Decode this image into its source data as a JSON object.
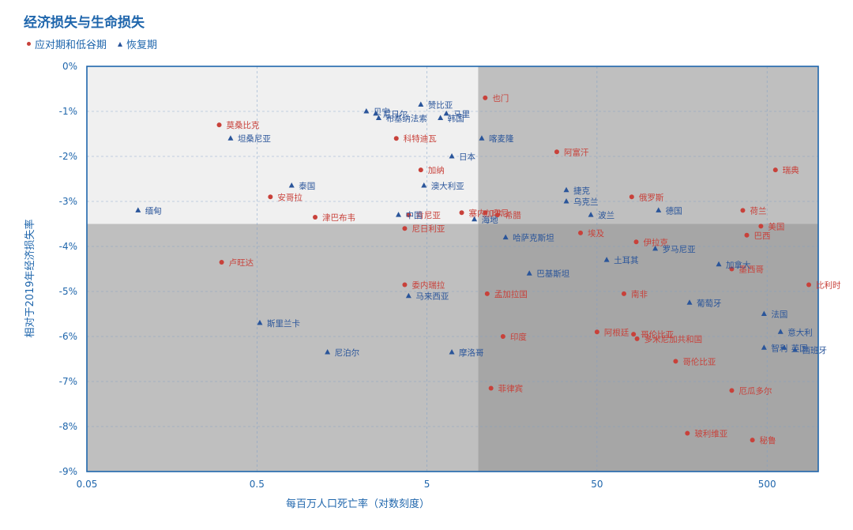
{
  "title": "经济损失与生命损失",
  "legend": {
    "recovery_low": "应对期和低谷期",
    "recovery": "恢复期"
  },
  "colors": {
    "red": "#c8413a",
    "blue": "#2a559a",
    "axis": "#1f66ac"
  },
  "chart_data": {
    "type": "scatter",
    "title": "经济损失与生命损失",
    "xlabel": "每百万人口死亡率（对数刻度）",
    "ylabel": "相对于2019年经济损失率",
    "xscale": "log",
    "xlim": [
      0.05,
      1000
    ],
    "ylim": [
      -9,
      0
    ],
    "x_ticks": [
      0.05,
      0.5,
      5,
      50,
      500
    ],
    "x_tick_labels": [
      "0.05",
      "0.5",
      "5",
      "50",
      "500"
    ],
    "y_ticks": [
      0,
      -1,
      -2,
      -3,
      -4,
      -5,
      -6,
      -7,
      -8,
      -9
    ],
    "y_tick_labels": [
      "0%",
      "-1%",
      "-2%",
      "-3%",
      "-4%",
      "-5%",
      "-6%",
      "-7%",
      "-8%",
      "-9%"
    ],
    "grid": true,
    "quadrant_split": {
      "x": 10,
      "y": -3.5
    },
    "series": [
      {
        "name": "应对期和低谷期",
        "marker": "circle",
        "color": "#c8413a",
        "points": [
          {
            "label": "也门",
            "x": 11,
            "y": -0.7
          },
          {
            "label": "莫桑比克",
            "x": 0.3,
            "y": -1.3
          },
          {
            "label": "科特迪瓦",
            "x": 3.3,
            "y": -1.6
          },
          {
            "label": "阿富汗",
            "x": 29,
            "y": -1.9
          },
          {
            "label": "瑞典",
            "x": 560,
            "y": -2.3
          },
          {
            "label": "加纳",
            "x": 4.6,
            "y": -2.3
          },
          {
            "label": "安哥拉",
            "x": 0.6,
            "y": -2.9
          },
          {
            "label": "俄罗斯",
            "x": 80,
            "y": -2.9
          },
          {
            "label": "塞内加尔",
            "x": 8,
            "y": -3.25
          },
          {
            "label": "印尼",
            "x": 11,
            "y": -3.25
          },
          {
            "label": "荷兰",
            "x": 360,
            "y": -3.2
          },
          {
            "label": "希腊",
            "x": 13,
            "y": -3.3
          },
          {
            "label": "津巴布韦",
            "x": 1.1,
            "y": -3.35
          },
          {
            "label": "肯尼亚",
            "x": 3.9,
            "y": -3.3
          },
          {
            "label": "尼日利亚",
            "x": 3.7,
            "y": -3.6
          },
          {
            "label": "美国",
            "x": 460,
            "y": -3.55
          },
          {
            "label": "埃及",
            "x": 40,
            "y": -3.7
          },
          {
            "label": "巴西",
            "x": 380,
            "y": -3.75
          },
          {
            "label": "伊拉克",
            "x": 85,
            "y": -3.9
          },
          {
            "label": "卢旺达",
            "x": 0.31,
            "y": -4.35
          },
          {
            "label": "比利时",
            "x": 880,
            "y": -4.85
          },
          {
            "label": "墨西哥",
            "x": 310,
            "y": -4.5
          },
          {
            "label": "委内瑞拉",
            "x": 3.7,
            "y": -4.85
          },
          {
            "label": "孟加拉国",
            "x": 11.3,
            "y": -5.05
          },
          {
            "label": "南非",
            "x": 72,
            "y": -5.05
          },
          {
            "label": "阿根廷",
            "x": 50,
            "y": -5.9
          },
          {
            "label": "哥伦比亚",
            "x": 82,
            "y": -5.95
          },
          {
            "label": "印度",
            "x": 14,
            "y": -6
          },
          {
            "label": "多米尼加共和国",
            "x": 86,
            "y": -6.05
          },
          {
            "label": "哥伦比亚",
            "x": 145,
            "y": -6.55
          },
          {
            "label": "菲律宾",
            "x": 11.9,
            "y": -7.15
          },
          {
            "label": "厄瓜多尔",
            "x": 310,
            "y": -7.2
          },
          {
            "label": "玻利维亚",
            "x": 170,
            "y": -8.15
          },
          {
            "label": "秘鲁",
            "x": 410,
            "y": -8.3
          }
        ]
      },
      {
        "name": "恢复期",
        "marker": "triangle",
        "color": "#2a559a",
        "points": [
          {
            "label": "赞比亚",
            "x": 4.6,
            "y": -0.85
          },
          {
            "label": "尼日尔",
            "x": 2.5,
            "y": -1.05
          },
          {
            "label": "马里",
            "x": 6.5,
            "y": -1.05
          },
          {
            "label": "韩国",
            "x": 6,
            "y": -1.15
          },
          {
            "label": "贝宁",
            "x": 2.2,
            "y": -1.0
          },
          {
            "label": "布基纳法索",
            "x": 2.6,
            "y": -1.15
          },
          {
            "label": "坦桑尼亚",
            "x": 0.35,
            "y": -1.6
          },
          {
            "label": "喀麦隆",
            "x": 10.5,
            "y": -1.6
          },
          {
            "label": "日本",
            "x": 7,
            "y": -2.0
          },
          {
            "label": "泰国",
            "x": 0.8,
            "y": -2.65
          },
          {
            "label": "澳大利亚",
            "x": 4.8,
            "y": -2.65
          },
          {
            "label": "捷克",
            "x": 33,
            "y": -2.75
          },
          {
            "label": "乌克兰",
            "x": 33,
            "y": -3.0
          },
          {
            "label": "德国",
            "x": 115,
            "y": -3.2
          },
          {
            "label": "缅甸",
            "x": 0.1,
            "y": -3.2
          },
          {
            "label": "波兰",
            "x": 46,
            "y": -3.3
          },
          {
            "label": "海地",
            "x": 9.5,
            "y": -3.4
          },
          {
            "label": "中国",
            "x": 3.4,
            "y": -3.3
          },
          {
            "label": "哈萨克斯坦",
            "x": 14.5,
            "y": -3.8
          },
          {
            "label": "罗马尼亚",
            "x": 110,
            "y": -4.05
          },
          {
            "label": "土耳其",
            "x": 57,
            "y": -4.3
          },
          {
            "label": "巴基斯坦",
            "x": 20,
            "y": -4.6
          },
          {
            "label": "加拿大",
            "x": 260,
            "y": -4.4
          },
          {
            "label": "马来西亚",
            "x": 3.9,
            "y": -5.1
          },
          {
            "label": "葡萄牙",
            "x": 175,
            "y": -5.25
          },
          {
            "label": "法国",
            "x": 480,
            "y": -5.5
          },
          {
            "label": "斯里兰卡",
            "x": 0.52,
            "y": -5.7
          },
          {
            "label": "意大利",
            "x": 600,
            "y": -5.9
          },
          {
            "label": "智利",
            "x": 480,
            "y": -6.25
          },
          {
            "label": "英国",
            "x": 630,
            "y": -6.25
          },
          {
            "label": "西班牙",
            "x": 730,
            "y": -6.3
          },
          {
            "label": "尼泊尔",
            "x": 1.3,
            "y": -6.35
          },
          {
            "label": "摩洛哥",
            "x": 7,
            "y": -6.35
          }
        ]
      }
    ]
  }
}
